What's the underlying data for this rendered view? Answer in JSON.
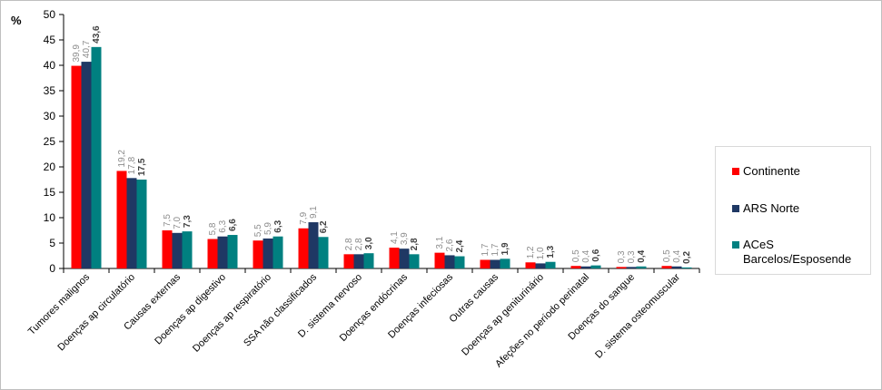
{
  "chart_data": {
    "type": "bar",
    "unit_label": "%",
    "ylim": [
      0,
      50
    ],
    "yticks": [
      0,
      5,
      10,
      15,
      20,
      25,
      30,
      35,
      40,
      45,
      50
    ],
    "grid": false,
    "legend_position": "right",
    "categories": [
      "Tumores malignos",
      "Doenças ap circulatório",
      "Causas externas",
      "Doenças ap digestivo",
      "Doenças ap respiratório",
      "SSA não classificados",
      "D. sistema nervoso",
      "Doenças endócrinas",
      "Doenças infeciosas",
      "Outras causas",
      "Doenças ap geniturinário",
      "Afeções no período perinatal",
      "Doenças do sangue",
      "D. sistema osteomuscular"
    ],
    "series": [
      {
        "name": "Continente",
        "color": "#ff0000",
        "values": [
          39.9,
          19.2,
          7.5,
          5.8,
          5.5,
          7.9,
          2.8,
          4.1,
          3.1,
          1.7,
          1.2,
          0.5,
          0.3,
          0.5
        ],
        "labels": [
          "39,9",
          "19,2",
          "7,5",
          "5,8",
          "5,5",
          "7,9",
          "2,8",
          "4,1",
          "3,1",
          "1,7",
          "1,2",
          "0,5",
          "0,3",
          "0,5"
        ]
      },
      {
        "name": "ARS Norte",
        "color": "#1f3864",
        "values": [
          40.7,
          17.8,
          7.0,
          6.3,
          5.9,
          9.1,
          2.8,
          3.9,
          2.6,
          1.7,
          1.0,
          0.4,
          0.3,
          0.4
        ],
        "labels": [
          "40,7",
          "17,8",
          "7,0",
          "6,3",
          "5,9",
          "9,1",
          "2,8",
          "3,9",
          "2,6",
          "1,7",
          "1,0",
          "0,4",
          "0,3",
          "0,4"
        ]
      },
      {
        "name": "ACeS Barcelos/Esposende",
        "color": "#008080",
        "values": [
          43.6,
          17.5,
          7.3,
          6.6,
          6.3,
          6.2,
          3.0,
          2.8,
          2.4,
          1.9,
          1.3,
          0.6,
          0.4,
          0.2
        ],
        "labels": [
          "43,6",
          "17,5",
          "7,3",
          "6,6",
          "6,3",
          "6,2",
          "3,0",
          "2,8",
          "2,4",
          "1,9",
          "1,3",
          "0,6",
          "0,4",
          "0,2"
        ]
      }
    ]
  }
}
